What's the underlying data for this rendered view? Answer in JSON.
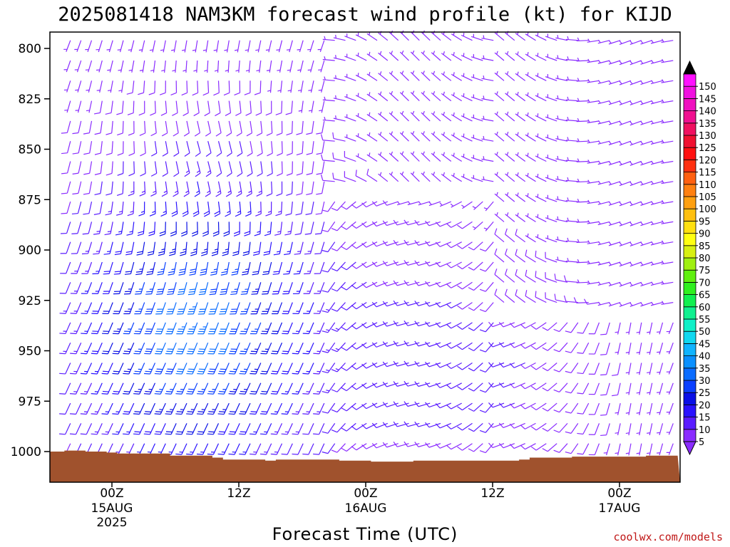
{
  "title": "2025081418 NAM3KM forecast wind profile (kt) for KIJD",
  "credit": "coolwx.com/models",
  "chart_data": {
    "type": "wind-barb-profile",
    "title": "2025081418 NAM3KM forecast wind profile (kt) for KIJD",
    "xlabel": "Forecast Time (UTC)",
    "ylabel": "",
    "y_axis": {
      "ticks": [
        "800",
        "825",
        "850",
        "875",
        "900",
        "925",
        "950",
        "975",
        "1000"
      ],
      "range": [
        792,
        1014
      ],
      "inverted": true
    },
    "x_axis": {
      "ticks": [
        {
          "hour": 0,
          "label": "00Z",
          "sub1": "15AUG",
          "sub2": "2025"
        },
        {
          "hour": 12,
          "label": "12Z",
          "sub1": "",
          "sub2": ""
        },
        {
          "hour": 24,
          "label": "00Z",
          "sub1": "16AUG",
          "sub2": ""
        },
        {
          "hour": 36,
          "label": "12Z",
          "sub1": "",
          "sub2": ""
        },
        {
          "hour": 48,
          "label": "00Z",
          "sub1": "17AUG",
          "sub2": ""
        }
      ],
      "range": [
        -6,
        53
      ]
    },
    "colorbar": {
      "labels": [
        "5",
        "10",
        "15",
        "20",
        "25",
        "30",
        "35",
        "40",
        "45",
        "50",
        "55",
        "60",
        "65",
        "70",
        "75",
        "80",
        "85",
        "90",
        "95",
        "100",
        "105",
        "110",
        "115",
        "120",
        "125",
        "130",
        "135",
        "140",
        "145",
        "150"
      ],
      "colors": [
        "#8a2cff",
        "#5a1cff",
        "#2a12ff",
        "#0a10e6",
        "#0a40ff",
        "#0a6cff",
        "#0a90ff",
        "#10b4ff",
        "#10d8f0",
        "#10f0c8",
        "#10f090",
        "#10f050",
        "#30f020",
        "#60f010",
        "#a0f010",
        "#d8f010",
        "#ffff10",
        "#ffe010",
        "#ffc010",
        "#ffa010",
        "#ff8010",
        "#ff6010",
        "#ff3010",
        "#ff1010",
        "#f01030",
        "#f01060",
        "#f01090",
        "#f010c0",
        "#f010e0",
        "#ff10ff"
      ],
      "under_color": "#8a2cff",
      "over_color": "#000000"
    },
    "terrain_color": "#a0522d",
    "barb_hours": [
      -5,
      -4,
      -3,
      -2,
      -1,
      0,
      1,
      2,
      3,
      4,
      5,
      6,
      7,
      8,
      9,
      10,
      11,
      12,
      13,
      14,
      15,
      16,
      17,
      18,
      19,
      20,
      21,
      22,
      23,
      24,
      25,
      26,
      27,
      28,
      29,
      30,
      31,
      32,
      33,
      34,
      35,
      36,
      37,
      38,
      39,
      40,
      41,
      42,
      43,
      44,
      45,
      46,
      47,
      48,
      49,
      50,
      51,
      52
    ],
    "barb_levels": [
      796,
      806,
      816,
      826,
      836,
      846,
      856,
      866,
      876,
      886,
      896,
      906,
      916,
      926,
      936,
      946,
      956,
      966,
      976,
      986,
      996
    ],
    "surface_pressure": [
      [
        -6,
        1000
      ],
      [
        -5,
        1000
      ],
      [
        -4,
        999.5
      ],
      [
        -3,
        999.5
      ],
      [
        -2,
        1000
      ],
      [
        -1,
        1000
      ],
      [
        0,
        1000.5
      ],
      [
        1,
        1001
      ],
      [
        2,
        1001
      ],
      [
        3,
        1001
      ],
      [
        4,
        1001
      ],
      [
        5,
        1001
      ],
      [
        6,
        1002
      ],
      [
        7,
        1002
      ],
      [
        8,
        1002
      ],
      [
        9,
        1002
      ],
      [
        10,
        1003
      ],
      [
        11,
        1004
      ],
      [
        12,
        1004
      ],
      [
        13,
        1004
      ],
      [
        14,
        1004
      ],
      [
        15,
        1004.5
      ],
      [
        16,
        1004
      ],
      [
        17,
        1004
      ],
      [
        18,
        1004
      ],
      [
        19,
        1004
      ],
      [
        20,
        1004
      ],
      [
        21,
        1004
      ],
      [
        22,
        1004.5
      ],
      [
        23,
        1004.5
      ],
      [
        24,
        1004.5
      ],
      [
        25,
        1005
      ],
      [
        26,
        1005
      ],
      [
        27,
        1005
      ],
      [
        28,
        1005
      ],
      [
        29,
        1004.5
      ],
      [
        30,
        1004.5
      ],
      [
        31,
        1004.5
      ],
      [
        32,
        1004.5
      ],
      [
        33,
        1004.5
      ],
      [
        34,
        1004.5
      ],
      [
        35,
        1004.5
      ],
      [
        36,
        1004.5
      ],
      [
        37,
        1004.5
      ],
      [
        38,
        1004.5
      ],
      [
        39,
        1004
      ],
      [
        40,
        1003
      ],
      [
        41,
        1003
      ],
      [
        42,
        1003
      ],
      [
        43,
        1003
      ],
      [
        44,
        1002.5
      ],
      [
        45,
        1002.5
      ],
      [
        46,
        1002.5
      ],
      [
        47,
        1002.5
      ],
      [
        48,
        1002.5
      ],
      [
        49,
        1002.5
      ],
      [
        50,
        1002.5
      ],
      [
        51,
        1002
      ],
      [
        52,
        1002
      ],
      [
        53,
        1002
      ]
    ]
  }
}
